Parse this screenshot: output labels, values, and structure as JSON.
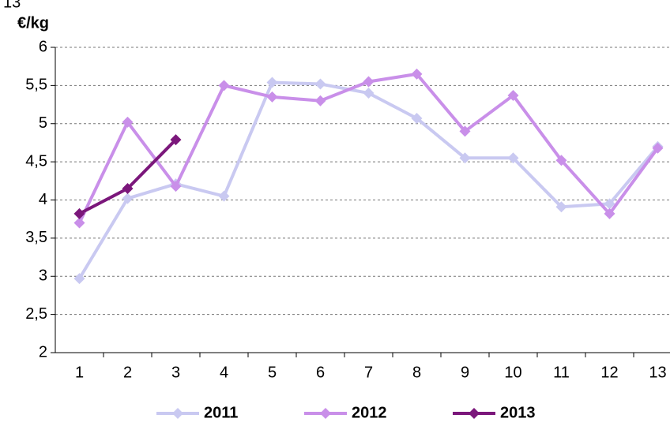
{
  "corner_label": "13",
  "chart_data": {
    "type": "line",
    "ylabel": "€/kg",
    "categories": [
      "1",
      "2",
      "3",
      "4",
      "5",
      "6",
      "7",
      "8",
      "9",
      "10",
      "11",
      "12",
      "13"
    ],
    "series": [
      {
        "name": "2011",
        "color": "#c9c9f1",
        "values": [
          2.97,
          4.02,
          4.21,
          4.05,
          5.54,
          5.52,
          5.4,
          5.07,
          4.55,
          4.55,
          3.91,
          3.95,
          4.7
        ]
      },
      {
        "name": "2012",
        "color": "#c98fe9",
        "values": [
          3.7,
          5.02,
          4.18,
          5.5,
          5.35,
          5.3,
          5.55,
          5.65,
          4.9,
          5.37,
          4.52,
          3.82,
          4.68
        ]
      },
      {
        "name": "2013",
        "color": "#7b177b",
        "values": [
          3.82,
          4.15,
          4.79,
          null,
          null,
          null,
          null,
          null,
          null,
          null,
          null,
          null,
          null
        ]
      }
    ],
    "ylim": [
      2,
      6
    ],
    "yticks": [
      2,
      {
        "value": 2.5,
        "label": "2,5"
      },
      3,
      {
        "value": 3.5,
        "label": "3,5"
      },
      4,
      {
        "value": 4.5,
        "label": "4,5"
      },
      5,
      {
        "value": 5.5,
        "label": "5,5"
      },
      6
    ],
    "grid": true,
    "legend": "bottom"
  }
}
